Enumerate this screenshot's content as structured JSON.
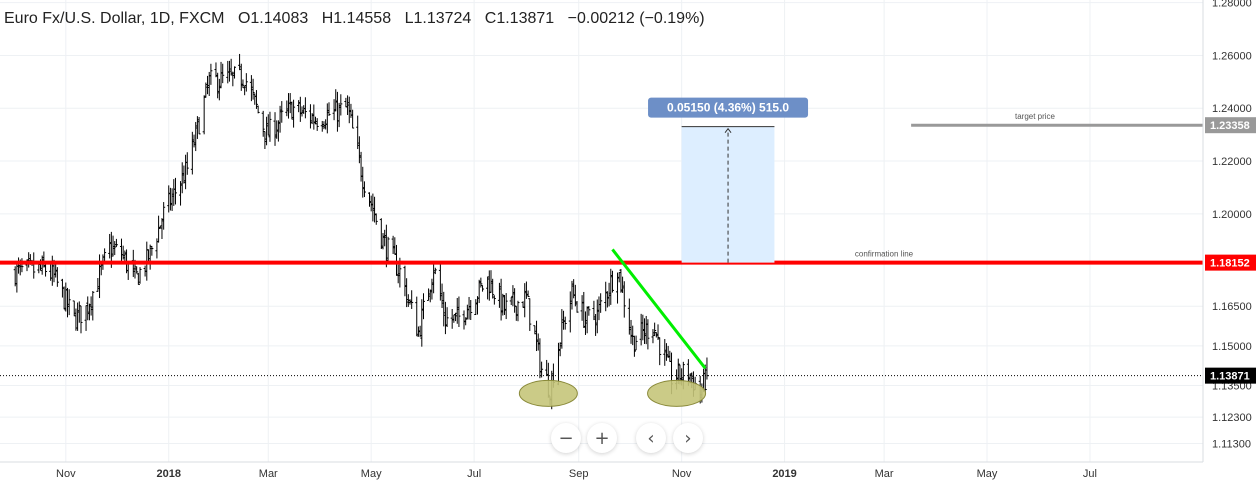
{
  "header": {
    "symbol": "Euro Fx/U.S. Dollar, 1D, FXCM",
    "o_label": "O",
    "o_value": "1.14083",
    "h_label": "H",
    "h_value": "1.14558",
    "l_label": "L",
    "l_value": "1.13724",
    "c_label": "C",
    "c_value": "1.13871",
    "change": "−0.00212 (−0.19%)"
  },
  "controls": {
    "zoom_out": "−",
    "zoom_in": "+",
    "scroll_left": "‹",
    "scroll_right": "›"
  },
  "colors": {
    "bars": "#000000",
    "confirmation_line": "#ff0000",
    "trend_line": "#00ee00",
    "target_line": "#999999",
    "measure_fill": "#ddeeff",
    "measure_label_bg": "#6d8fc7",
    "ellipse_fill": "#c5c57a",
    "grid": "#eef1f4"
  },
  "chart_data": {
    "type": "ohlc",
    "title": "Euro Fx/U.S. Dollar, 1D, FXCM",
    "ylim": [
      1.106,
      1.281
    ],
    "grid": true,
    "y_ticks": [
      "1.28000",
      "1.26000",
      "1.24000",
      "1.22000",
      "1.20000",
      "1.16500",
      "1.15000",
      "1.13500",
      "1.12300",
      "1.11300"
    ],
    "x_ticks": [
      "Nov",
      "2018",
      "Mar",
      "May",
      "Jul",
      "Sep",
      "Nov",
      "2019",
      "Mar",
      "May",
      "Jul"
    ],
    "x_tick_dates": [
      "2017-11-01",
      "2018-01-01",
      "2018-03-01",
      "2018-05-01",
      "2018-07-01",
      "2018-09-01",
      "2018-11-01",
      "2019-01-01",
      "2019-03-01",
      "2019-05-01",
      "2019-07-01"
    ],
    "xlim": [
      "2017-09-23",
      "2019-09-06"
    ],
    "series": [
      {
        "values": [
          {
            "date": "2017-10-02",
            "close": 1.178
          },
          {
            "date": "2017-10-20",
            "close": 1.179
          },
          {
            "date": "2017-10-25",
            "close": 1.176
          },
          {
            "date": "2017-11-06",
            "close": 1.16
          },
          {
            "date": "2017-11-13",
            "close": 1.164
          },
          {
            "date": "2017-11-20",
            "close": 1.175
          },
          {
            "date": "2017-11-27",
            "close": 1.187
          },
          {
            "date": "2017-12-04",
            "close": 1.185
          },
          {
            "date": "2017-12-12",
            "close": 1.175
          },
          {
            "date": "2017-12-20",
            "close": 1.183
          },
          {
            "date": "2017-12-29",
            "close": 1.2
          },
          {
            "date": "2018-01-12",
            "close": 1.217
          },
          {
            "date": "2018-01-25",
            "close": 1.25
          },
          {
            "date": "2018-02-15",
            "close": 1.252
          },
          {
            "date": "2018-02-28",
            "close": 1.23
          },
          {
            "date": "2018-03-15",
            "close": 1.24
          },
          {
            "date": "2018-03-29",
            "close": 1.236
          },
          {
            "date": "2018-04-17",
            "close": 1.24
          },
          {
            "date": "2018-04-26",
            "close": 1.214
          },
          {
            "date": "2018-05-08",
            "close": 1.19
          },
          {
            "date": "2018-05-18",
            "close": 1.178
          },
          {
            "date": "2018-05-29",
            "close": 1.155
          },
          {
            "date": "2018-06-07",
            "close": 1.18
          },
          {
            "date": "2018-06-14",
            "close": 1.16
          },
          {
            "date": "2018-06-21",
            "close": 1.16
          },
          {
            "date": "2018-07-09",
            "close": 1.175
          },
          {
            "date": "2018-07-19",
            "close": 1.164
          },
          {
            "date": "2018-08-01",
            "close": 1.168
          },
          {
            "date": "2018-08-10",
            "close": 1.141
          },
          {
            "date": "2018-08-15",
            "close": 1.134
          },
          {
            "date": "2018-08-22",
            "close": 1.156
          },
          {
            "date": "2018-08-28",
            "close": 1.17
          },
          {
            "date": "2018-09-05",
            "close": 1.16
          },
          {
            "date": "2018-09-12",
            "close": 1.162
          },
          {
            "date": "2018-09-24",
            "close": 1.18
          },
          {
            "date": "2018-10-03",
            "close": 1.152
          },
          {
            "date": "2018-10-15",
            "close": 1.158
          },
          {
            "date": "2018-10-26",
            "close": 1.138
          },
          {
            "date": "2018-11-05",
            "close": 1.14
          },
          {
            "date": "2018-11-12",
            "close": 1.132
          },
          {
            "date": "2018-11-16",
            "close": 1.1387
          }
        ]
      }
    ],
    "last_close": "1.13871",
    "annotations": {
      "confirmation_line": {
        "label": "confirmation line",
        "price": 1.18152,
        "price_label": "1.18152"
      },
      "target_line": {
        "label": "target price",
        "price": 1.23358,
        "price_label": "1.23358",
        "from": "2019-03-17",
        "to": "2019-09-06"
      },
      "trend_line": {
        "from": {
          "date": "2018-09-21",
          "price": 1.1865
        },
        "to": {
          "date": "2018-11-15",
          "price": 1.1415
        }
      },
      "measure_box": {
        "label": "0.05150 (4.36%) 515.0",
        "from": "2018-11-01",
        "to": "2018-12-26",
        "low": 1.18152,
        "high": 1.23302
      },
      "bottom_markers": [
        {
          "date": "2018-08-14",
          "price": 1.1335
        },
        {
          "date": "2018-10-29",
          "price": 1.1335
        }
      ]
    }
  }
}
